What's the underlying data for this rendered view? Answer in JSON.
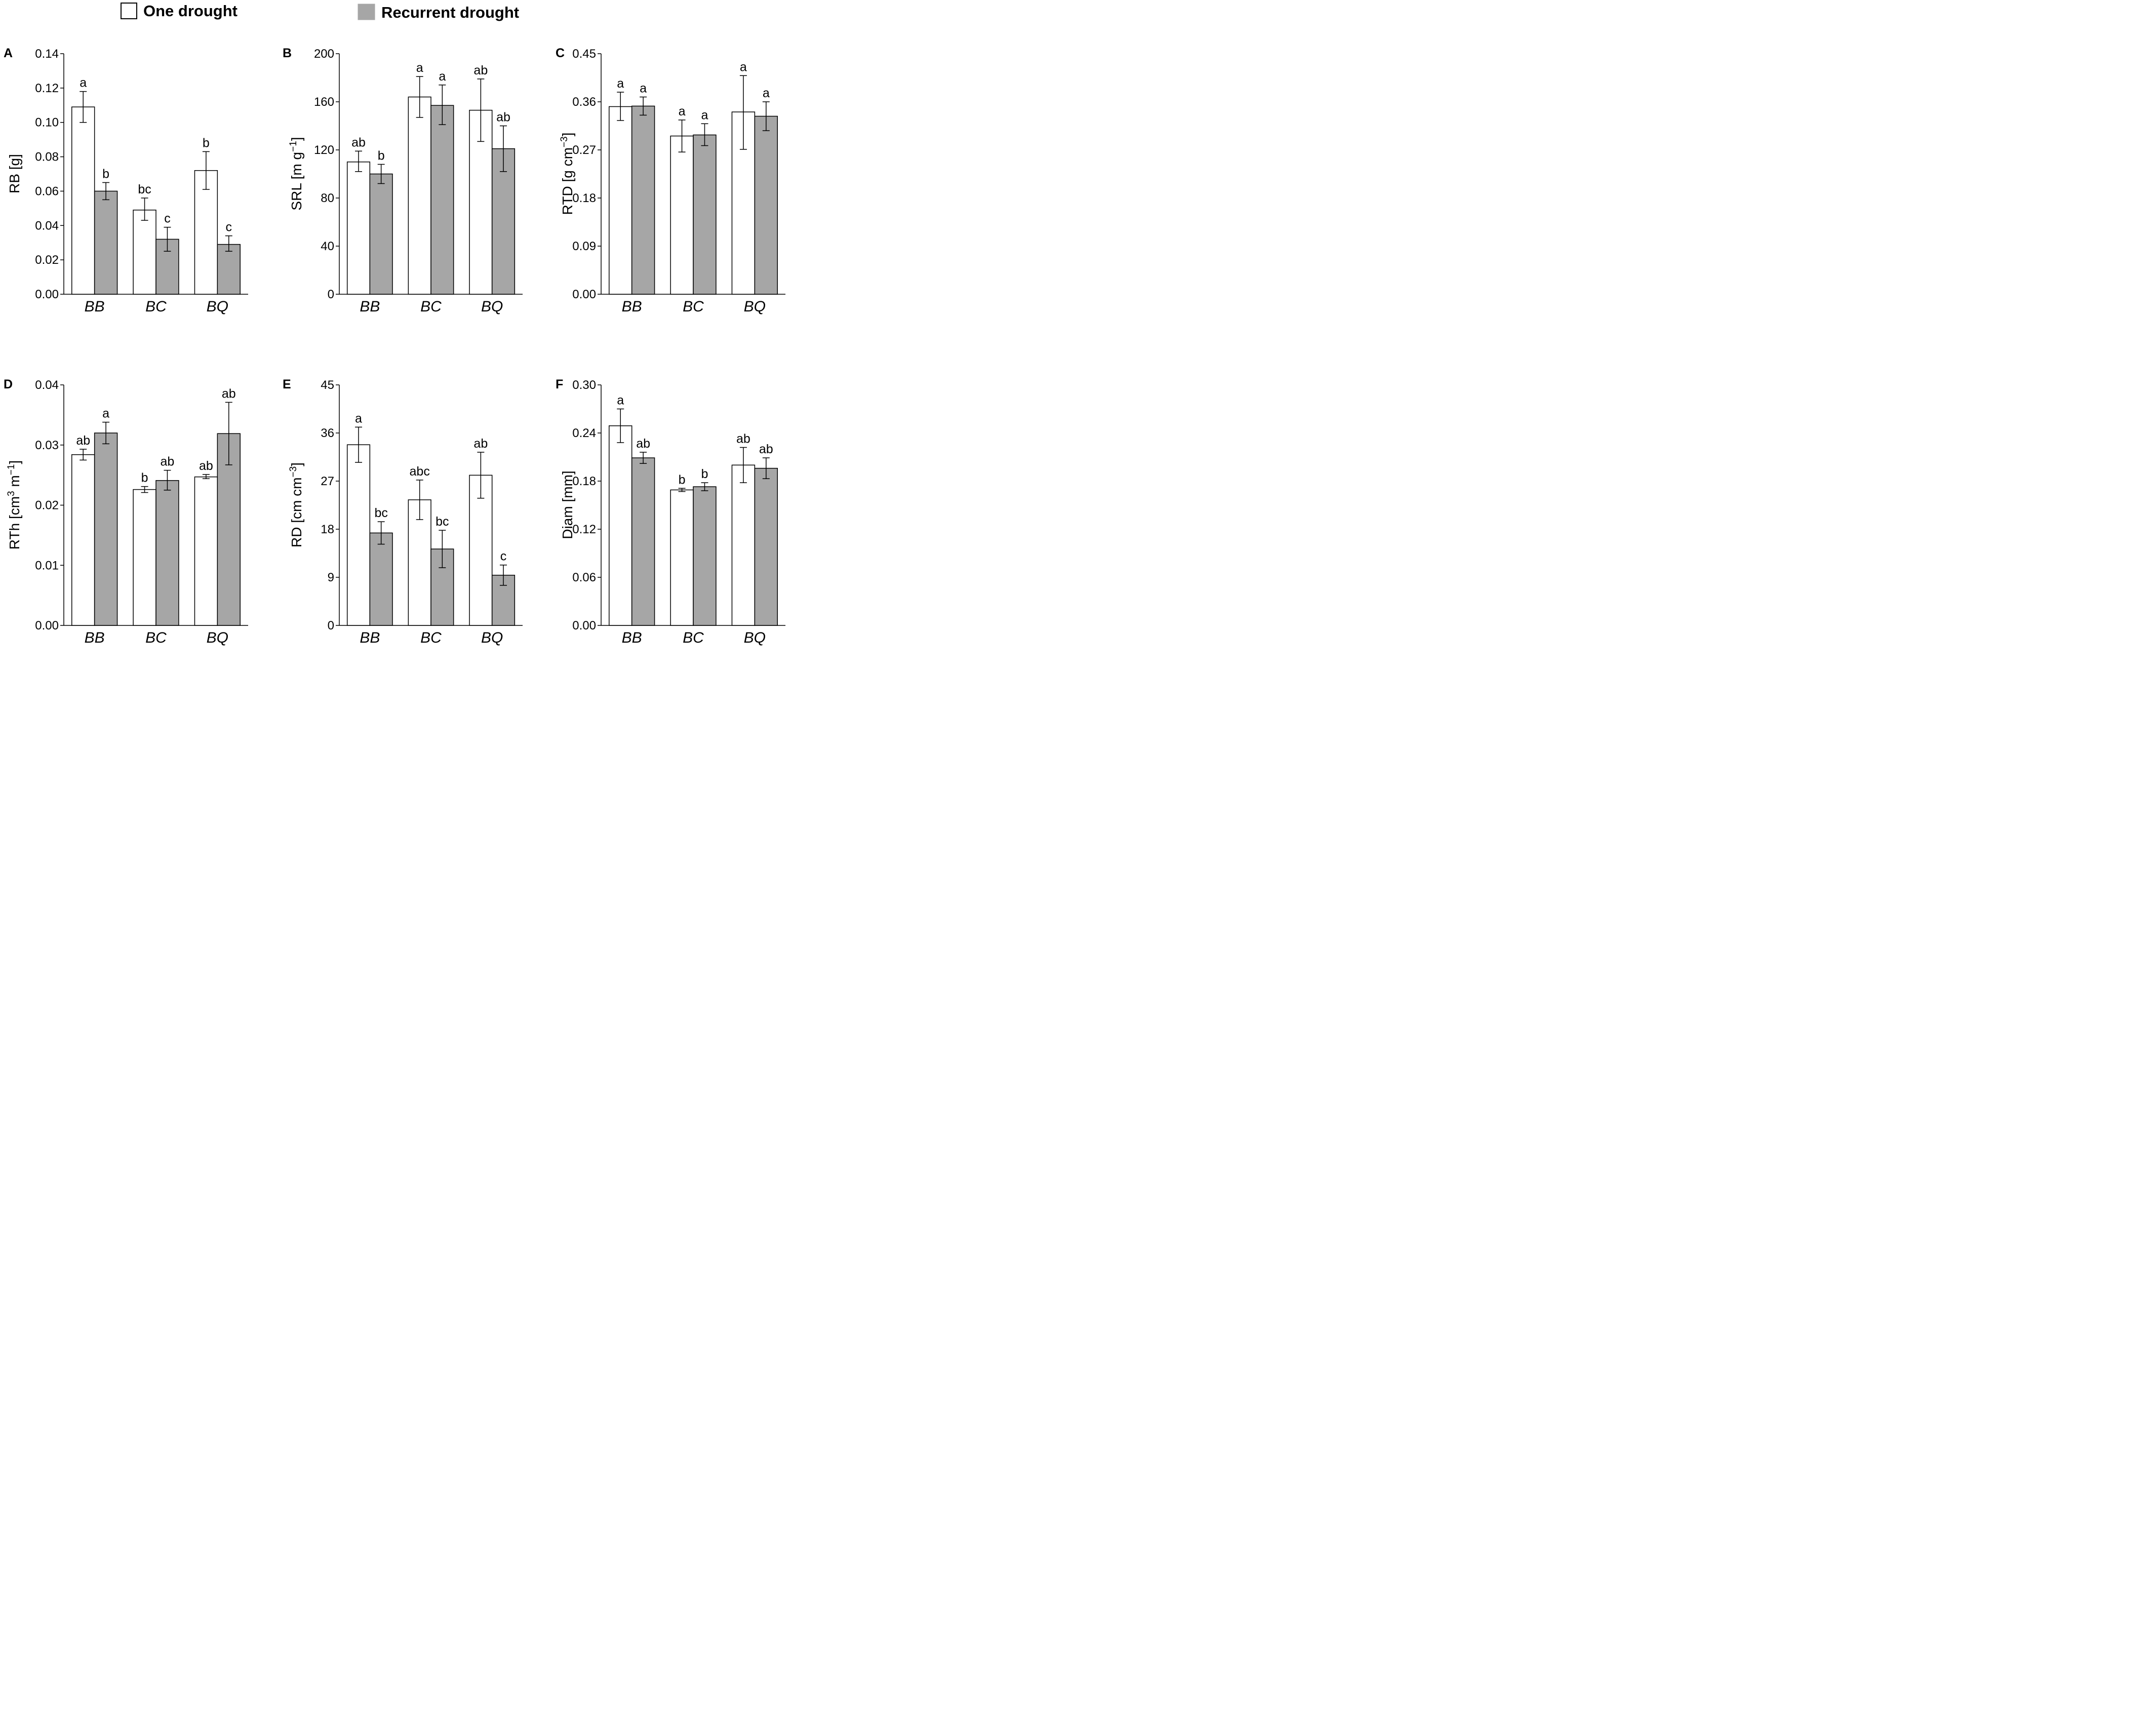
{
  "legend": {
    "items": [
      {
        "label": "One drought",
        "color": "#ffffff"
      },
      {
        "label": "Recurrent drought",
        "color": "#a6a6a6"
      }
    ]
  },
  "chart_data": [
    {
      "panel": "A",
      "type": "bar",
      "ylabel": "RB [g]",
      "categories": [
        "BB",
        "BC",
        "BQ"
      ],
      "yticks": [
        "0.00",
        "0.02",
        "0.04",
        "0.06",
        "0.08",
        "0.10",
        "0.12",
        "0.14"
      ],
      "ylim": [
        0,
        0.14
      ],
      "series": [
        {
          "name": "One drought",
          "values": [
            0.109,
            0.049,
            0.072
          ],
          "err_low": [
            0.1,
            0.043,
            0.061
          ],
          "err_high": [
            0.118,
            0.056,
            0.083
          ],
          "labels": [
            "a",
            "bc",
            "b"
          ]
        },
        {
          "name": "Recurrent drought",
          "values": [
            0.06,
            0.032,
            0.029
          ],
          "err_low": [
            0.055,
            0.025,
            0.025
          ],
          "err_high": [
            0.065,
            0.039,
            0.034
          ],
          "labels": [
            "b",
            "c",
            "c"
          ]
        }
      ]
    },
    {
      "panel": "B",
      "type": "bar",
      "ylabel": "SRL [m g⁻¹]",
      "categories": [
        "BB",
        "BC",
        "BQ"
      ],
      "yticks": [
        "0",
        "40",
        "80",
        "120",
        "160",
        "200"
      ],
      "ylim": [
        0,
        200
      ],
      "series": [
        {
          "name": "One drought",
          "values": [
            110,
            164,
            153
          ],
          "err_low": [
            102,
            147,
            127
          ],
          "err_high": [
            119,
            181,
            179
          ],
          "labels": [
            "ab",
            "a",
            "ab"
          ]
        },
        {
          "name": "Recurrent drought",
          "values": [
            100,
            157,
            121
          ],
          "err_low": [
            92,
            141,
            102
          ],
          "err_high": [
            108,
            174,
            140
          ],
          "labels": [
            "b",
            "a",
            "ab"
          ]
        }
      ]
    },
    {
      "panel": "C",
      "type": "bar",
      "ylabel": "RTD [g cm⁻³]",
      "categories": [
        "BB",
        "BC",
        "BQ"
      ],
      "yticks": [
        "0.00",
        "0.09",
        "0.18",
        "0.27",
        "0.36",
        "0.45"
      ],
      "ylim": [
        0,
        0.45
      ],
      "series": [
        {
          "name": "One drought",
          "values": [
            0.351,
            0.296,
            0.341
          ],
          "err_low": [
            0.325,
            0.266,
            0.271
          ],
          "err_high": [
            0.378,
            0.326,
            0.409
          ],
          "labels": [
            "a",
            "a",
            "a"
          ]
        },
        {
          "name": "Recurrent drought",
          "values": [
            0.352,
            0.298,
            0.333
          ],
          "err_low": [
            0.335,
            0.278,
            0.306
          ],
          "err_high": [
            0.369,
            0.319,
            0.36
          ],
          "labels": [
            "a",
            "a",
            "a"
          ]
        }
      ]
    },
    {
      "panel": "D",
      "type": "bar",
      "ylabel": "RTh [cm³ m⁻¹]",
      "categories": [
        "BB",
        "BC",
        "BQ"
      ],
      "yticks": [
        "0.00",
        "0.01",
        "0.02",
        "0.03",
        "0.04"
      ],
      "ylim": [
        0,
        0.04
      ],
      "series": [
        {
          "name": "One drought",
          "values": [
            0.0284,
            0.0226,
            0.0247
          ],
          "err_low": [
            0.0275,
            0.0221,
            0.0244
          ],
          "err_high": [
            0.0293,
            0.0231,
            0.0251
          ],
          "labels": [
            "ab",
            "b",
            "ab"
          ]
        },
        {
          "name": "Recurrent drought",
          "values": [
            0.032,
            0.0241,
            0.0319
          ],
          "err_low": [
            0.0302,
            0.0225,
            0.0267
          ],
          "err_high": [
            0.0338,
            0.0258,
            0.0371
          ],
          "labels": [
            "a",
            "ab",
            "ab"
          ]
        }
      ]
    },
    {
      "panel": "E",
      "type": "bar",
      "ylabel": "RD [cm cm⁻³]",
      "categories": [
        "BB",
        "BC",
        "BQ"
      ],
      "yticks": [
        "0",
        "9",
        "18",
        "27",
        "36",
        "45"
      ],
      "ylim": [
        0,
        45
      ],
      "series": [
        {
          "name": "One drought",
          "values": [
            33.8,
            23.5,
            28.1
          ],
          "err_low": [
            30.5,
            19.8,
            23.8
          ],
          "err_high": [
            37.1,
            27.2,
            32.4
          ],
          "labels": [
            "a",
            "abc",
            "ab"
          ]
        },
        {
          "name": "Recurrent drought",
          "values": [
            17.3,
            14.3,
            9.4
          ],
          "err_low": [
            15.2,
            10.8,
            7.5
          ],
          "err_high": [
            19.4,
            17.8,
            11.3
          ],
          "labels": [
            "bc",
            "bc",
            "c"
          ]
        }
      ]
    },
    {
      "panel": "F",
      "type": "bar",
      "ylabel": "Diam [mm]",
      "categories": [
        "BB",
        "BC",
        "BQ"
      ],
      "yticks": [
        "0.00",
        "0.06",
        "0.12",
        "0.18",
        "0.24",
        "0.30"
      ],
      "ylim": [
        0,
        0.3
      ],
      "series": [
        {
          "name": "One drought",
          "values": [
            0.249,
            0.169,
            0.2
          ],
          "err_low": [
            0.228,
            0.167,
            0.178
          ],
          "err_high": [
            0.27,
            0.171,
            0.222
          ],
          "labels": [
            "a",
            "b",
            "ab"
          ]
        },
        {
          "name": "Recurrent drought",
          "values": [
            0.209,
            0.173,
            0.196
          ],
          "err_low": [
            0.202,
            0.168,
            0.183
          ],
          "err_high": [
            0.216,
            0.178,
            0.209
          ],
          "labels": [
            "ab",
            "b",
            "ab"
          ]
        }
      ]
    }
  ]
}
